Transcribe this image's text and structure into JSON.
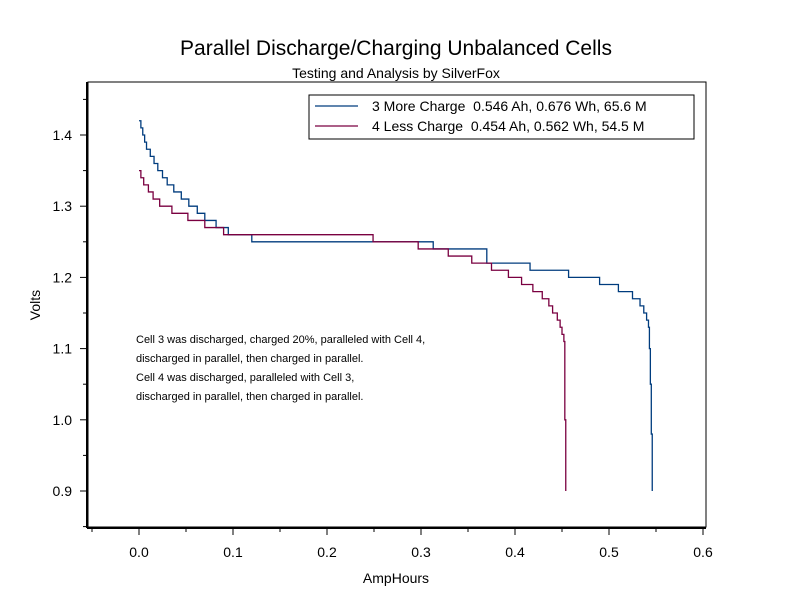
{
  "chart_data": {
    "type": "line",
    "title": "Parallel Discharge/Charging Unbalanced Cells",
    "subtitle": "Testing and Analysis by SilverFox",
    "xlabel": "AmpHours",
    "ylabel": "Volts",
    "xlim": [
      -0.05,
      0.6
    ],
    "ylim": [
      0.85,
      1.465
    ],
    "xticks": [
      "0.0",
      "0.1",
      "0.2",
      "0.3",
      "0.4",
      "0.5",
      "0.6"
    ],
    "xtick_values": [
      0,
      0.1,
      0.2,
      0.3,
      0.4,
      0.5,
      0.6
    ],
    "yticks": [
      "0.9",
      "1.0",
      "1.1",
      "1.2",
      "1.3",
      "1.4"
    ],
    "ytick_values": [
      0.9,
      1.0,
      1.1,
      1.2,
      1.3,
      1.4
    ],
    "grid": false,
    "legend_position": "top-right",
    "series": [
      {
        "name": "3 More Charge  0.546 Ah, 0.676 Wh, 65.6 M",
        "color": "#003c7e",
        "x": [
          0,
          0.002,
          0.004,
          0.006,
          0.008,
          0.012,
          0.016,
          0.02,
          0.025,
          0.03,
          0.037,
          0.045,
          0.053,
          0.062,
          0.07,
          0.082,
          0.095,
          0.12,
          0.313,
          0.37,
          0.416,
          0.457,
          0.49,
          0.51,
          0.525,
          0.533,
          0.537,
          0.54,
          0.542,
          0.543,
          0.544,
          0.545,
          0.546
        ],
        "y": [
          1.42,
          1.41,
          1.4,
          1.39,
          1.38,
          1.37,
          1.36,
          1.35,
          1.34,
          1.33,
          1.32,
          1.31,
          1.3,
          1.29,
          1.28,
          1.27,
          1.26,
          1.25,
          1.24,
          1.22,
          1.21,
          1.2,
          1.19,
          1.18,
          1.17,
          1.16,
          1.15,
          1.14,
          1.13,
          1.1,
          1.05,
          0.98,
          0.9
        ]
      },
      {
        "name": "4 Less Charge  0.454 Ah, 0.562 Wh, 54.5 M",
        "color": "#7a0040",
        "x": [
          0,
          0.002,
          0.005,
          0.01,
          0.015,
          0.022,
          0.035,
          0.052,
          0.07,
          0.09,
          0.249,
          0.297,
          0.329,
          0.354,
          0.375,
          0.393,
          0.407,
          0.419,
          0.429,
          0.436,
          0.44,
          0.445,
          0.448,
          0.45,
          0.452,
          0.453,
          0.454
        ],
        "y": [
          1.35,
          1.34,
          1.33,
          1.32,
          1.31,
          1.3,
          1.29,
          1.28,
          1.27,
          1.26,
          1.25,
          1.24,
          1.23,
          1.22,
          1.21,
          1.2,
          1.19,
          1.18,
          1.17,
          1.16,
          1.15,
          1.14,
          1.13,
          1.12,
          1.11,
          1.0,
          0.9
        ]
      }
    ],
    "annotations": [
      "Cell 3 was discharged, charged 20%, paralleled with Cell 4,",
      "discharged in parallel, then charged in parallel.",
      "Cell 4 was discharged, paralleled with Cell 3,",
      "discharged in parallel, then charged in parallel."
    ]
  }
}
